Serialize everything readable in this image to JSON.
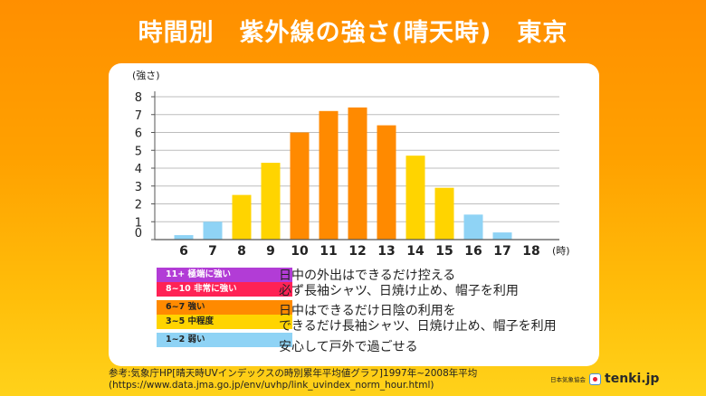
{
  "title": "時間別　紫外線の強さ(晴天時)　東京",
  "chart_data": {
    "type": "bar",
    "title": "時間別　紫外線の強さ(晴天時)　東京",
    "ylabel": "(強さ)",
    "xlabel": "(時)",
    "categories": [
      "6",
      "7",
      "8",
      "9",
      "10",
      "11",
      "12",
      "13",
      "14",
      "15",
      "16",
      "17",
      "18"
    ],
    "values": [
      0.25,
      1.0,
      2.5,
      4.3,
      6.0,
      7.2,
      7.4,
      6.4,
      4.7,
      2.9,
      1.4,
      0.4,
      0
    ],
    "yticks": [
      "0",
      "1",
      "2",
      "3",
      "4",
      "5",
      "6",
      "7",
      "8"
    ],
    "ylim": [
      0,
      8
    ],
    "grid": true,
    "colors": {
      "weak": "#8fd3f5",
      "moderate": "#ffd400",
      "strong": "#ff8a00",
      "very_strong": "#ff2255",
      "extreme": "#b23cd6"
    }
  },
  "legend": {
    "groups": [
      {
        "items": [
          {
            "label": "11+  極端に強い",
            "color": "#b23cd6",
            "text_color": "#ffffff"
          },
          {
            "label": "8~10 非常に強い",
            "color": "#ff2255",
            "text_color": "#ffffff"
          }
        ],
        "desc": [
          "日中の外出はできるだけ控える",
          "必ず長袖シャツ、日焼け止め、帽子を利用"
        ]
      },
      {
        "items": [
          {
            "label": "6~7 強い",
            "color": "#ff8a00",
            "text_color": "#222222"
          },
          {
            "label": "3~5 中程度",
            "color": "#ffd400",
            "text_color": "#222222"
          }
        ],
        "desc": [
          "日中はできるだけ日陰の利用を",
          "できるだけ長袖シャツ、日焼け止め、帽子を利用"
        ]
      },
      {
        "items": [
          {
            "label": "1~2 弱い",
            "color": "#8fd3f5",
            "text_color": "#222222"
          }
        ],
        "desc": [
          "安心して戸外で過ごせる"
        ]
      }
    ]
  },
  "source": {
    "line1": "参考:気象庁HP[晴天時UVインデックスの時別累年平均値グラフ]1997年~2008年平均",
    "line2": "(https://www.data.jma.go.jp/env/uvhp/link_uvindex_norm_hour.html)"
  },
  "brand": {
    "org": "日本気象協会",
    "name": "tenki.jp"
  }
}
